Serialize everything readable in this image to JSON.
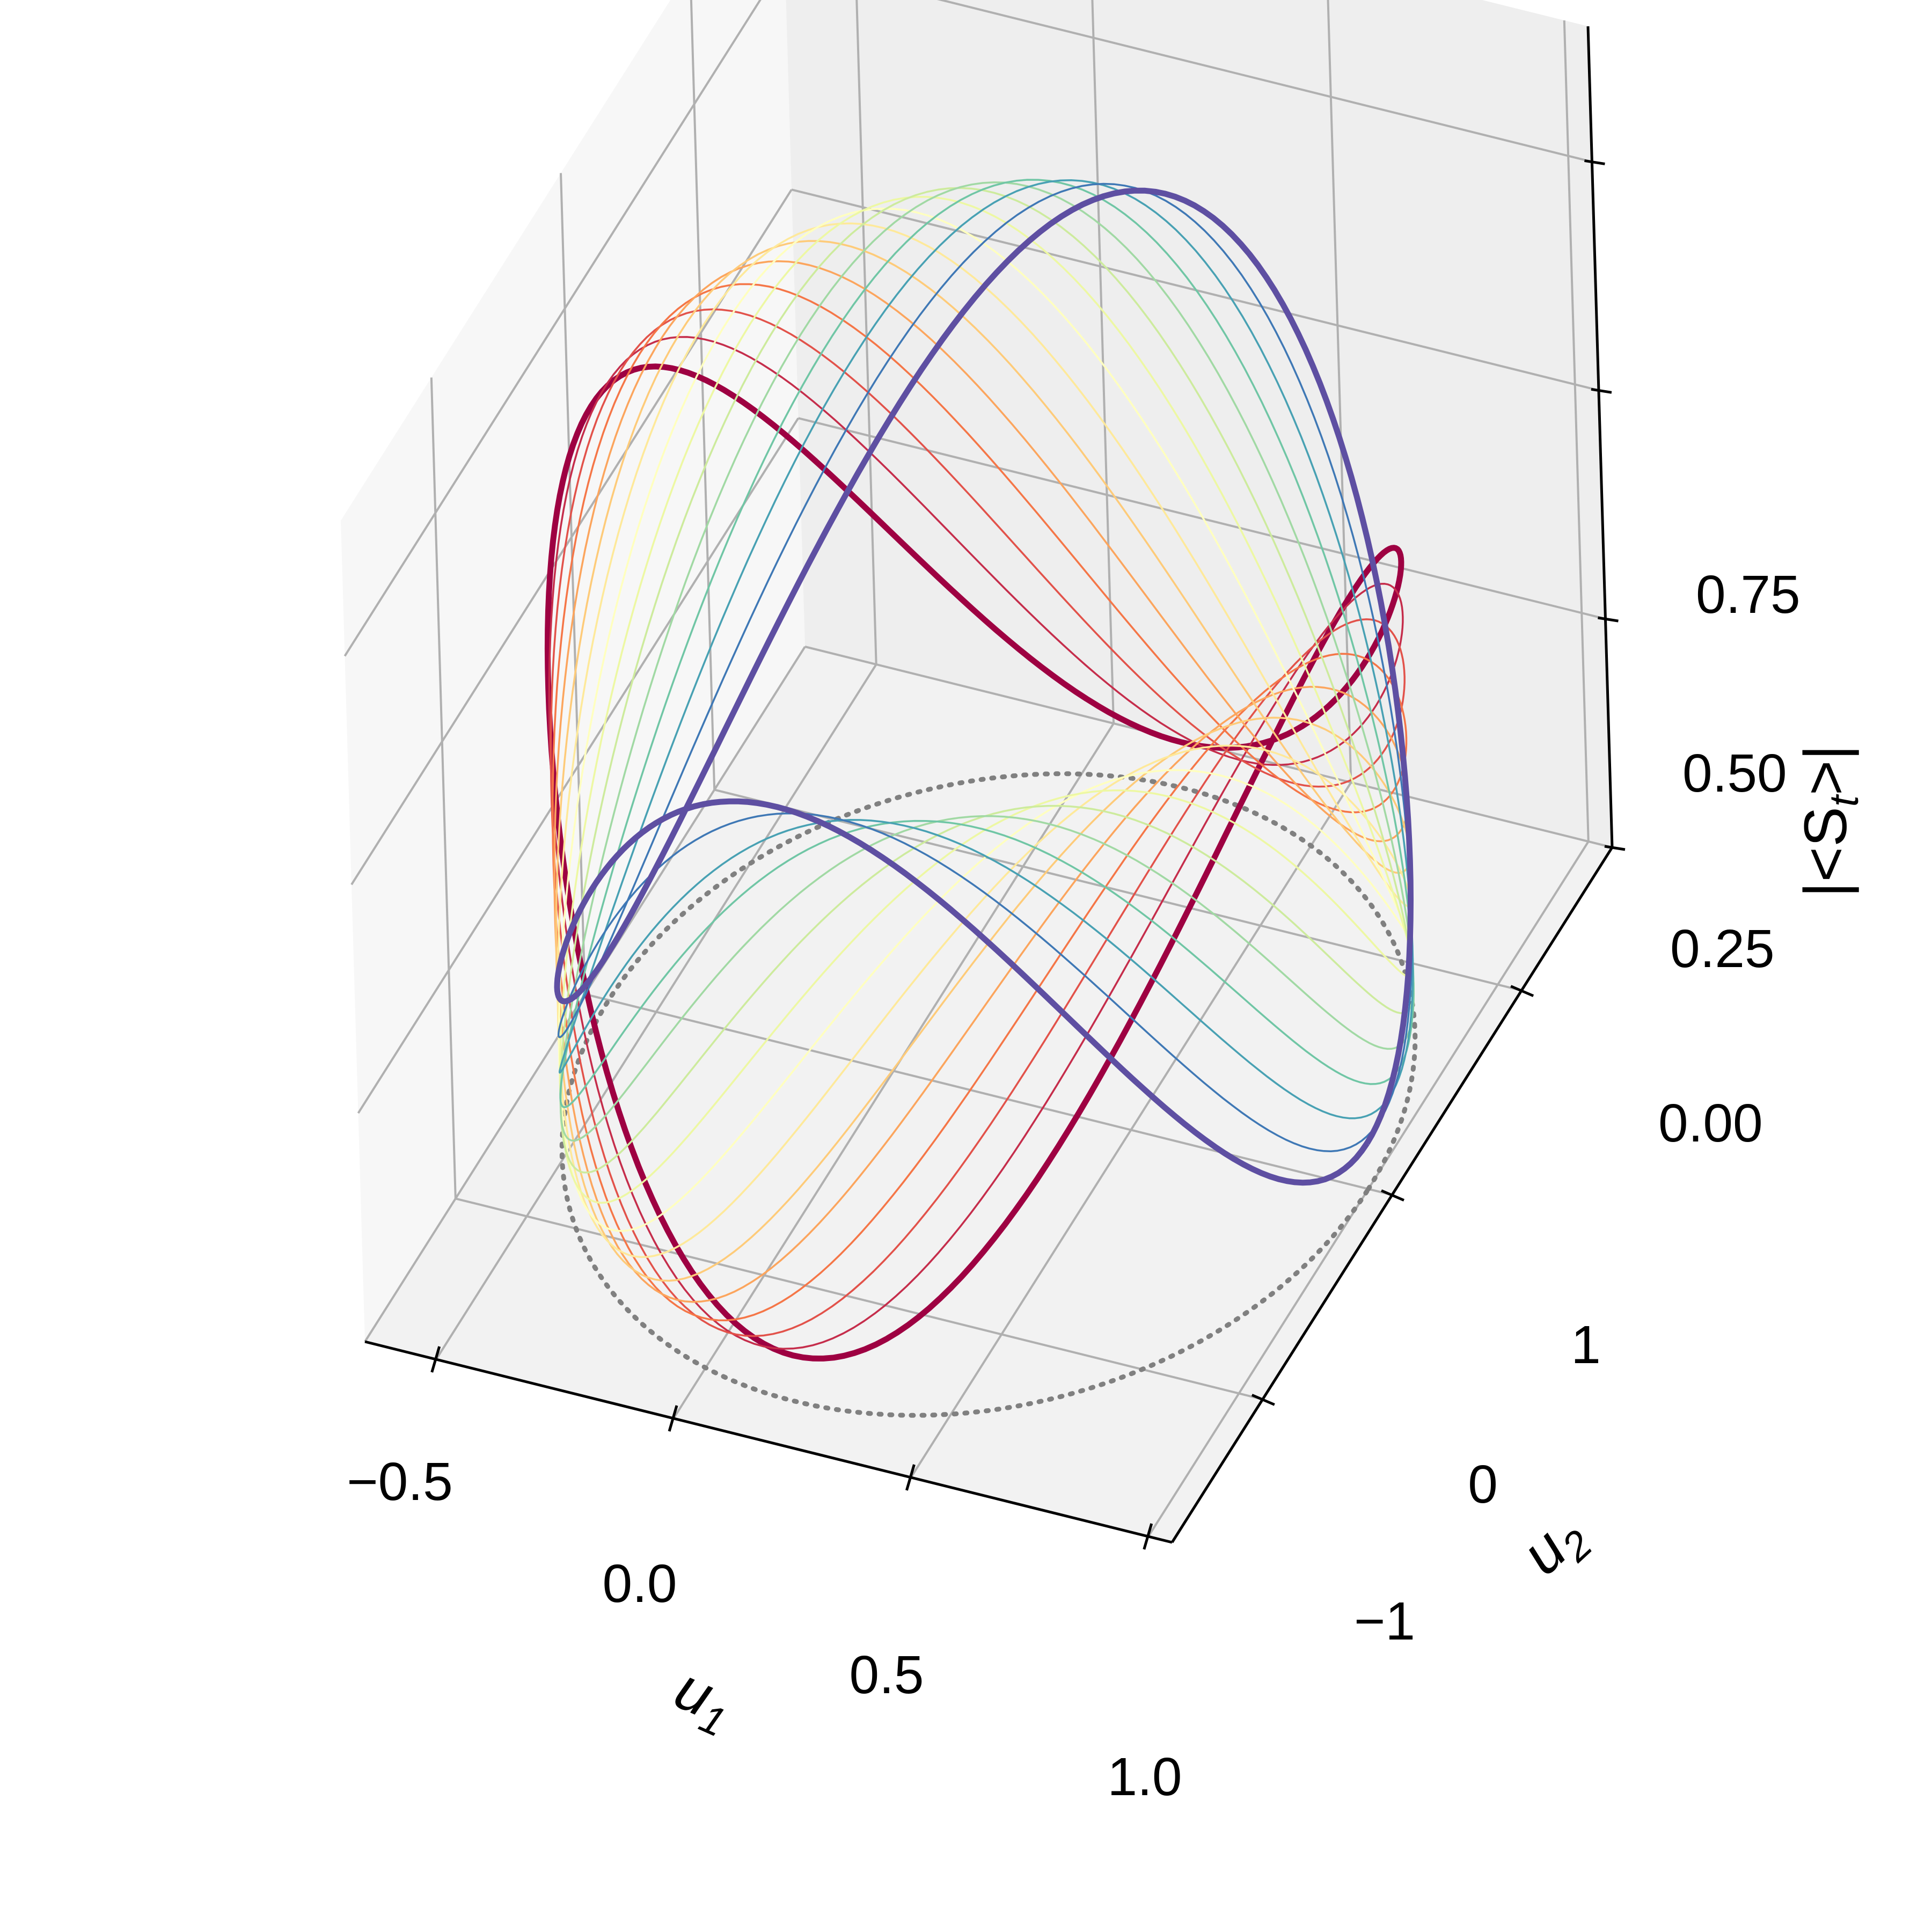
{
  "chart_data": {
    "type": "line3d",
    "title": "",
    "axes": {
      "x": {
        "label": "u",
        "label_subscript": "1",
        "range": [
          -0.65,
          1.05
        ],
        "ticks": [
          -0.5,
          0.0,
          0.5,
          1.0
        ],
        "tick_labels": [
          "−0.5",
          "0.0",
          "0.5",
          "1.0"
        ]
      },
      "y": {
        "label": "u",
        "label_subscript": "2",
        "range": [
          -1.7,
          1.7
        ],
        "ticks": [
          -1,
          0,
          1
        ],
        "tick_labels": [
          "−1",
          "0",
          "1"
        ]
      },
      "z": {
        "label": "|<S",
        "label_subscript": "t",
        "label_suffix": ">|",
        "range": [
          0.0,
          0.75
        ],
        "ticks": [
          0.0,
          0.25,
          0.5,
          0.75
        ],
        "tick_labels": [
          "0.00",
          "0.25",
          "0.50",
          "0.75"
        ]
      }
    },
    "grid": true,
    "colormap": "Spectral",
    "n_curves": 15,
    "first_curve_color": "#9e0142",
    "last_curve_color": "#5e4fa2",
    "projection": {
      "style": "dotted",
      "color": "#808080",
      "plane": "z = 0"
    },
    "curve_model": {
      "description": "closed loops over phase theta in [0, 2pi]",
      "x_center": 0.2,
      "x_amplitude": 0.8,
      "y_amplitude": 1.5,
      "z_mean": 0.35,
      "z_amplitude": 0.3,
      "phase_start_deg": 0,
      "phase_end_deg": 180
    }
  }
}
